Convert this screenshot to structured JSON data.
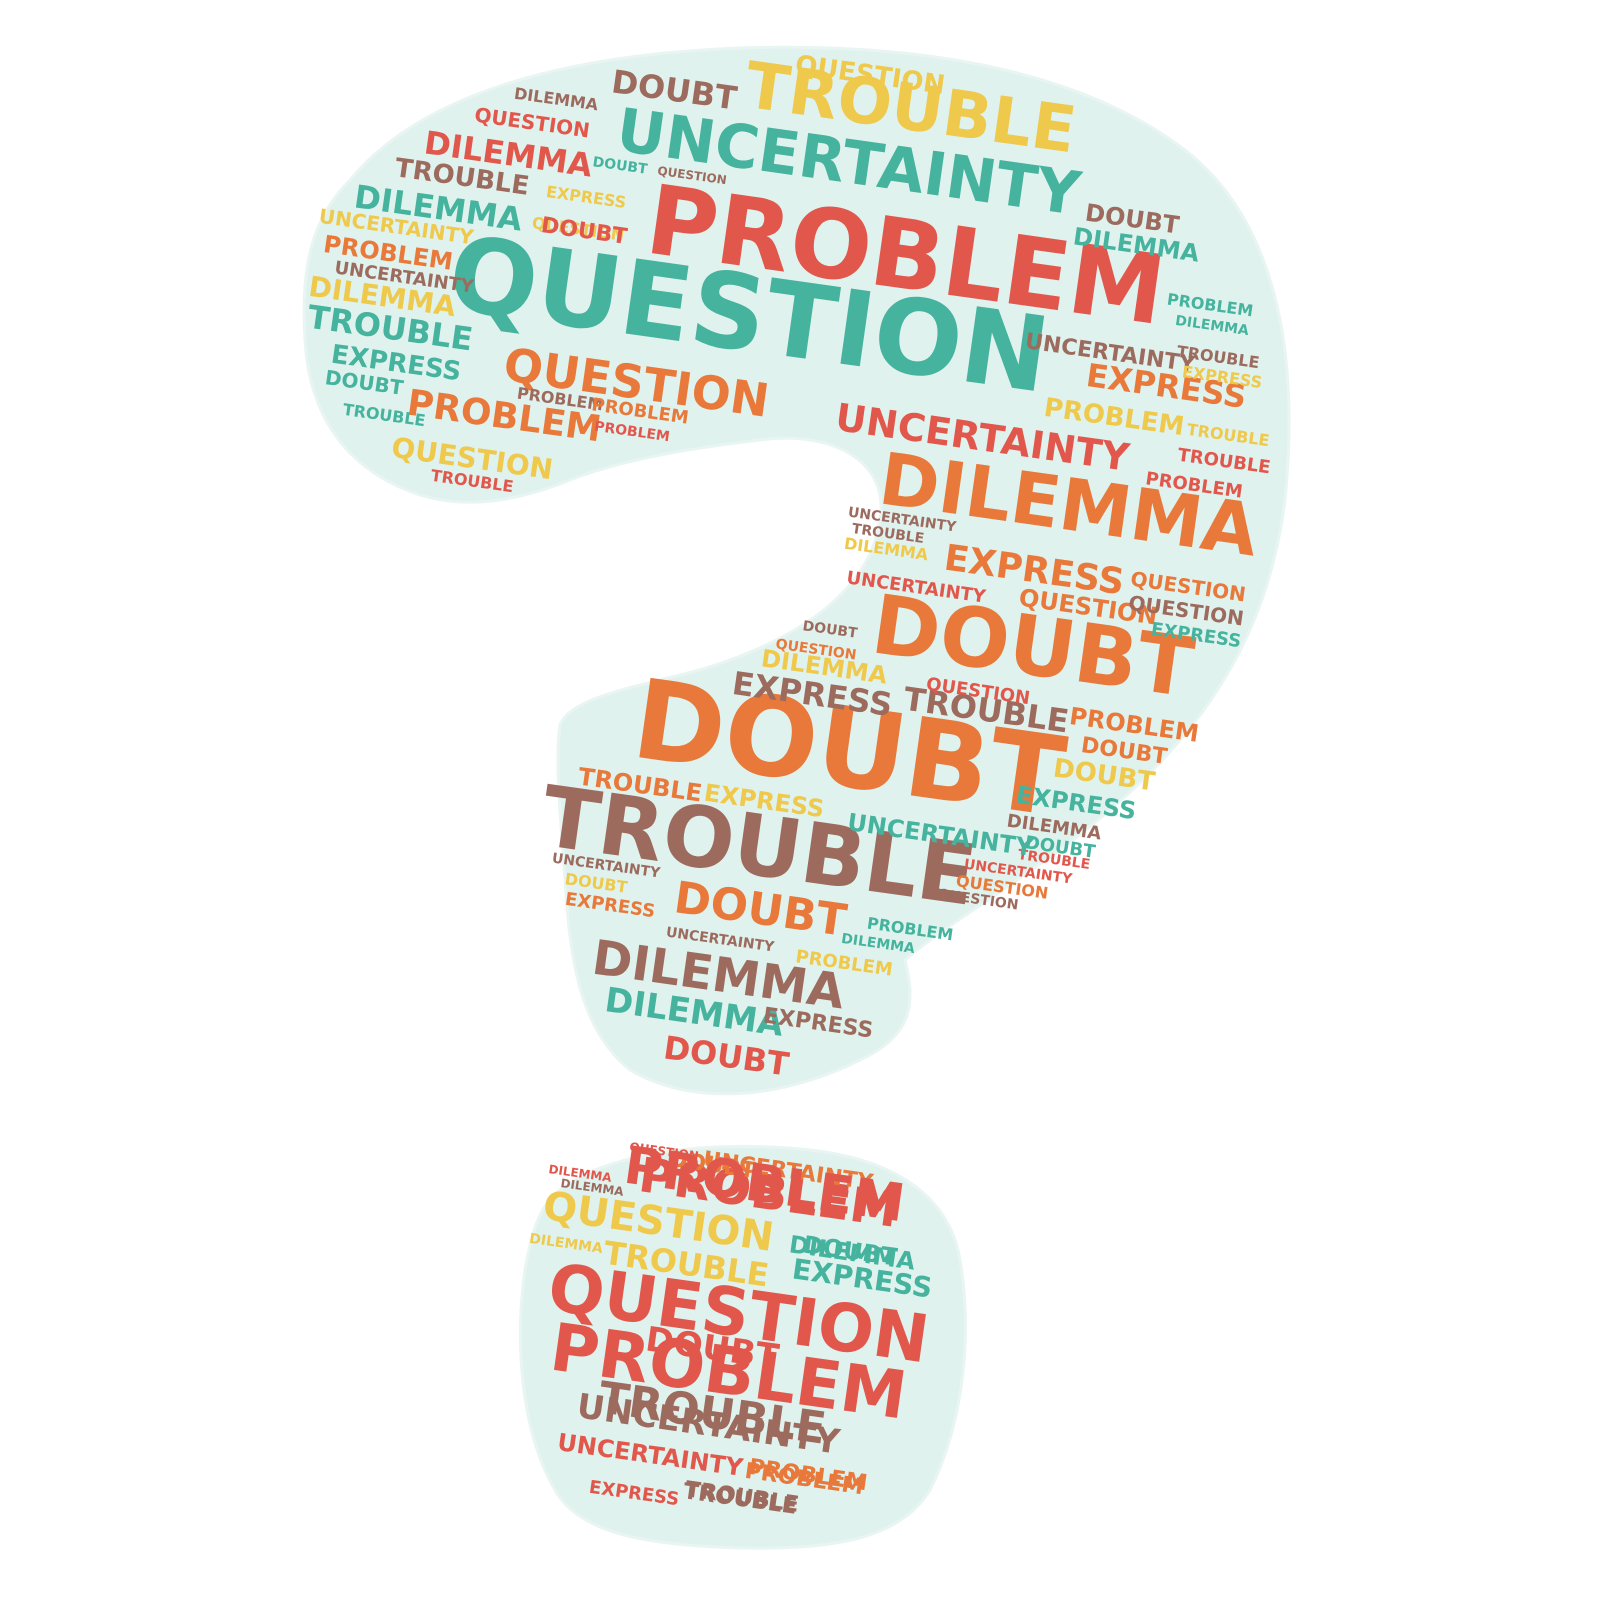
{
  "colors": {
    "teal": "#45b39d",
    "red": "#e2574c",
    "orange": "#e8793a",
    "yellow": "#efc94c",
    "brown": "#9c6b5e",
    "shape_fill": "#dff2ee"
  },
  "word_cloud": {
    "shape": "question-mark",
    "words": [
      {
        "text": "PROBLEM",
        "color": "red"
      },
      {
        "text": "QUESTION",
        "color": "teal"
      },
      {
        "text": "UNCERTAINTY",
        "color": "teal"
      },
      {
        "text": "TROUBLE",
        "color": "yellow"
      },
      {
        "text": "DILEMMA",
        "color": "orange"
      },
      {
        "text": "DOUBT",
        "color": "orange"
      },
      {
        "text": "DOUBT",
        "color": "orange"
      },
      {
        "text": "TROUBLE",
        "color": "brown"
      },
      {
        "text": "QUESTION",
        "color": "orange"
      },
      {
        "text": "UNCERTAINTY",
        "color": "red"
      },
      {
        "text": "EXPRESS",
        "color": "orange"
      },
      {
        "text": "EXPRESS",
        "color": "brown"
      },
      {
        "text": "TROUBLE",
        "color": "brown"
      },
      {
        "text": "DOUBT",
        "color": "orange"
      },
      {
        "text": "DILEMMA",
        "color": "brown"
      },
      {
        "text": "DILEMMA",
        "color": "teal"
      },
      {
        "text": "DOUBT",
        "color": "red"
      },
      {
        "text": "DILEMMA",
        "color": "red"
      },
      {
        "text": "DILEMMA",
        "color": "teal"
      },
      {
        "text": "TROUBLE",
        "color": "teal"
      },
      {
        "text": "PROBLEM",
        "color": "orange"
      },
      {
        "text": "QUESTION",
        "color": "yellow"
      },
      {
        "text": "DOUBT",
        "color": "brown"
      },
      {
        "text": "QUESTION",
        "color": "yellow"
      },
      {
        "text": "QUESTION",
        "color": "red"
      },
      {
        "text": "DILEMMA",
        "color": "brown"
      },
      {
        "text": "TROUBLE",
        "color": "brown"
      },
      {
        "text": "UNCERTAINTY",
        "color": "yellow"
      },
      {
        "text": "PROBLEM",
        "color": "orange"
      },
      {
        "text": "UNCERTAINTY",
        "color": "brown"
      },
      {
        "text": "DILEMMA",
        "color": "yellow"
      },
      {
        "text": "EXPRESS",
        "color": "teal"
      },
      {
        "text": "DOUBT",
        "color": "teal"
      },
      {
        "text": "TROUBLE",
        "color": "teal"
      },
      {
        "text": "QUESTION",
        "color": "yellow"
      },
      {
        "text": "TROUBLE",
        "color": "red"
      },
      {
        "text": "PROBLEM",
        "color": "brown"
      },
      {
        "text": "PROBLEM",
        "color": "orange"
      },
      {
        "text": "PROBLEM",
        "color": "red"
      },
      {
        "text": "DOUBT",
        "color": "red"
      },
      {
        "text": "EXPRESS",
        "color": "yellow"
      },
      {
        "text": "DOUBT",
        "color": "teal"
      },
      {
        "text": "QUESTION",
        "color": "brown"
      },
      {
        "text": "DOUBT",
        "color": "brown"
      },
      {
        "text": "DILEMMA",
        "color": "teal"
      },
      {
        "text": "UNCERTAINTY",
        "color": "brown"
      },
      {
        "text": "TROUBLE",
        "color": "brown"
      },
      {
        "text": "EXPRESS",
        "color": "orange"
      },
      {
        "text": "EXPRESS",
        "color": "yellow"
      },
      {
        "text": "PROBLEM",
        "color": "yellow"
      },
      {
        "text": "TROUBLE",
        "color": "yellow"
      },
      {
        "text": "TROUBLE",
        "color": "red"
      },
      {
        "text": "PROBLEM",
        "color": "red"
      },
      {
        "text": "PROBLEM",
        "color": "teal"
      },
      {
        "text": "DILEMMA",
        "color": "teal"
      },
      {
        "text": "UNCERTAINTY",
        "color": "brown"
      },
      {
        "text": "UNCERTAINTY",
        "color": "red"
      },
      {
        "text": "DILEMMA",
        "color": "yellow"
      },
      {
        "text": "TROUBLE",
        "color": "brown"
      },
      {
        "text": "QUESTION",
        "color": "orange"
      },
      {
        "text": "QUESTION",
        "color": "brown"
      },
      {
        "text": "QUESTION",
        "color": "orange"
      },
      {
        "text": "EXPRESS",
        "color": "teal"
      },
      {
        "text": "DOUBT",
        "color": "brown"
      },
      {
        "text": "QUESTION",
        "color": "orange"
      },
      {
        "text": "DILEMMA",
        "color": "yellow"
      },
      {
        "text": "PROBLEM",
        "color": "orange"
      },
      {
        "text": "DOUBT",
        "color": "orange"
      },
      {
        "text": "DOUBT",
        "color": "yellow"
      },
      {
        "text": "EXPRESS",
        "color": "teal"
      },
      {
        "text": "DILEMMA",
        "color": "brown"
      },
      {
        "text": "DOUBT",
        "color": "teal"
      },
      {
        "text": "TROUBLE",
        "color": "red"
      },
      {
        "text": "UNCERTAINTY",
        "color": "red"
      },
      {
        "text": "QUESTION",
        "color": "orange"
      },
      {
        "text": "QUESTION",
        "color": "brown"
      },
      {
        "text": "PROBLEM",
        "color": "teal"
      },
      {
        "text": "DILEMMA",
        "color": "teal"
      },
      {
        "text": "QUESTION",
        "color": "red"
      },
      {
        "text": "EXPRESS",
        "color": "yellow"
      },
      {
        "text": "TROUBLE",
        "color": "orange"
      },
      {
        "text": "UNCERTAINTY",
        "color": "teal"
      },
      {
        "text": "PROBLEM",
        "color": "yellow"
      },
      {
        "text": "UNCERTAINTY",
        "color": "brown"
      },
      {
        "text": "DOUBT",
        "color": "yellow"
      },
      {
        "text": "EXPRESS",
        "color": "orange"
      },
      {
        "text": "UNCERTAINTY",
        "color": "brown"
      },
      {
        "text": "EXPRESS",
        "color": "brown"
      },
      {
        "text": "PROBLEM",
        "color": "red"
      },
      {
        "text": "DOUBT",
        "color": "red"
      },
      {
        "text": "TROUBLE",
        "color": "brown"
      },
      {
        "text": "DOUBT",
        "color": "orange"
      },
      {
        "text": "PROBLEM",
        "color": "orange"
      },
      {
        "text": "DOUBT",
        "color": "teal"
      },
      {
        "text": "TROUBLE",
        "color": "brown"
      },
      {
        "text": "PROBLEM",
        "color": "red"
      },
      {
        "text": "QUESTION",
        "color": "yellow"
      },
      {
        "text": "UNCERTAINTY",
        "color": "orange"
      },
      {
        "text": "TROUBLE",
        "color": "yellow"
      },
      {
        "text": "QUESTION",
        "color": "red"
      },
      {
        "text": "PROBLEM",
        "color": "red"
      },
      {
        "text": "UNCERTAINTY",
        "color": "brown"
      },
      {
        "text": "EXPRESS",
        "color": "teal"
      },
      {
        "text": "DILEMMA",
        "color": "teal"
      },
      {
        "text": "UNCERTAINTY",
        "color": "red"
      },
      {
        "text": "PROBLEM",
        "color": "orange"
      },
      {
        "text": "EXPRESS",
        "color": "red"
      },
      {
        "text": "TROUBLE",
        "color": "brown"
      },
      {
        "text": "DILEMMA",
        "color": "yellow"
      },
      {
        "text": "DILEMMA",
        "color": "brown"
      },
      {
        "text": "QUESTION",
        "color": "red"
      },
      {
        "text": "DILEMMA",
        "color": "red"
      }
    ]
  }
}
